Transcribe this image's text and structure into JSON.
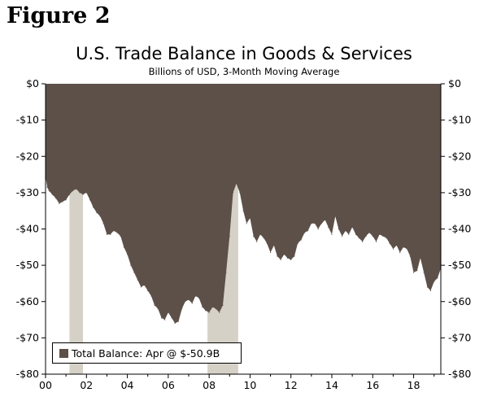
{
  "figure_label": "Figure 2",
  "colors": {
    "area": "#5d5048",
    "recession": "#d6d1c7",
    "background": "#ffffff"
  },
  "chart_data": {
    "type": "area",
    "title": "U.S. Trade Balance in Goods & Services",
    "subtitle": "Billions of USD, 3-Month Moving Average",
    "xlabel": "",
    "ylabel": "",
    "xlim": [
      2000,
      2019.33
    ],
    "ylim": [
      -80,
      0
    ],
    "grid": false,
    "legend_placement": "bottom-left",
    "x_ticks": [
      {
        "value": 2000,
        "label": "00"
      },
      {
        "value": 2002,
        "label": "02"
      },
      {
        "value": 2004,
        "label": "04"
      },
      {
        "value": 2006,
        "label": "06"
      },
      {
        "value": 2008,
        "label": "08"
      },
      {
        "value": 2010,
        "label": "10"
      },
      {
        "value": 2012,
        "label": "12"
      },
      {
        "value": 2014,
        "label": "14"
      },
      {
        "value": 2016,
        "label": "16"
      },
      {
        "value": 2018,
        "label": "18"
      }
    ],
    "y_ticks": [
      {
        "value": 0,
        "label": "$0"
      },
      {
        "value": -10,
        "label": "-$10"
      },
      {
        "value": -20,
        "label": "-$20"
      },
      {
        "value": -30,
        "label": "-$30"
      },
      {
        "value": -40,
        "label": "-$40"
      },
      {
        "value": -50,
        "label": "-$50"
      },
      {
        "value": -60,
        "label": "-$60"
      },
      {
        "value": -70,
        "label": "-$70"
      },
      {
        "value": -80,
        "label": "-$80"
      }
    ],
    "recessions": [
      {
        "start": 2001.17,
        "end": 2001.83
      },
      {
        "start": 2007.92,
        "end": 2009.42
      }
    ],
    "series": [
      {
        "name": "Total Balance",
        "legend_label": "Total Balance: Apr @ $-50.9B",
        "x": [
          2000.0,
          2000.08,
          2000.17,
          2000.33,
          2000.5,
          2000.67,
          2000.83,
          2001.0,
          2001.17,
          2001.33,
          2001.5,
          2001.67,
          2001.83,
          2002.0,
          2002.17,
          2002.33,
          2002.5,
          2002.67,
          2002.83,
          2003.0,
          2003.17,
          2003.33,
          2003.5,
          2003.67,
          2003.83,
          2004.0,
          2004.17,
          2004.33,
          2004.5,
          2004.67,
          2004.83,
          2005.0,
          2005.17,
          2005.33,
          2005.5,
          2005.67,
          2005.83,
          2006.0,
          2006.17,
          2006.33,
          2006.5,
          2006.67,
          2006.83,
          2007.0,
          2007.17,
          2007.33,
          2007.5,
          2007.67,
          2007.83,
          2008.0,
          2008.17,
          2008.33,
          2008.5,
          2008.67,
          2008.83,
          2009.0,
          2009.17,
          2009.33,
          2009.5,
          2009.67,
          2009.83,
          2010.0,
          2010.17,
          2010.33,
          2010.5,
          2010.67,
          2010.83,
          2011.0,
          2011.17,
          2011.33,
          2011.5,
          2011.67,
          2011.83,
          2012.0,
          2012.17,
          2012.33,
          2012.5,
          2012.67,
          2012.83,
          2013.0,
          2013.17,
          2013.33,
          2013.5,
          2013.67,
          2013.83,
          2014.0,
          2014.17,
          2014.33,
          2014.5,
          2014.67,
          2014.83,
          2015.0,
          2015.17,
          2015.33,
          2015.5,
          2015.67,
          2015.83,
          2016.0,
          2016.17,
          2016.33,
          2016.5,
          2016.67,
          2016.83,
          2017.0,
          2017.17,
          2017.33,
          2017.5,
          2017.67,
          2017.83,
          2018.0,
          2018.17,
          2018.33,
          2018.5,
          2018.67,
          2018.83,
          2019.0,
          2019.17,
          2019.33
        ],
        "values": [
          -25.5,
          -28.5,
          -29.5,
          -30.5,
          -31.5,
          -33.0,
          -32.5,
          -32.0,
          -30.5,
          -29.5,
          -29.0,
          -30.0,
          -30.5,
          -30.0,
          -32.0,
          -34.0,
          -35.5,
          -36.5,
          -38.5,
          -41.5,
          -41.5,
          -40.5,
          -41.0,
          -42.0,
          -45.0,
          -47.0,
          -50.0,
          -52.0,
          -54.0,
          -56.0,
          -55.5,
          -57.0,
          -58.5,
          -61.0,
          -62.0,
          -64.5,
          -65.0,
          -63.0,
          -64.5,
          -66.0,
          -65.5,
          -62.0,
          -60.0,
          -59.5,
          -60.5,
          -58.5,
          -59.0,
          -61.5,
          -62.5,
          -63.0,
          -61.5,
          -62.0,
          -63.0,
          -61.0,
          -52.0,
          -42.0,
          -30.0,
          -27.5,
          -30.0,
          -35.0,
          -38.5,
          -37.0,
          -42.0,
          -43.5,
          -41.5,
          -42.5,
          -44.0,
          -46.5,
          -44.5,
          -47.5,
          -48.5,
          -47.0,
          -48.0,
          -48.5,
          -47.5,
          -44.0,
          -43.0,
          -41.0,
          -40.5,
          -38.5,
          -38.5,
          -40.0,
          -38.5,
          -37.5,
          -39.5,
          -41.5,
          -36.5,
          -40.0,
          -42.0,
          -40.5,
          -41.5,
          -39.5,
          -41.5,
          -42.5,
          -43.5,
          -42.0,
          -41.0,
          -42.0,
          -43.5,
          -41.5,
          -42.0,
          -42.5,
          -44.0,
          -45.5,
          -44.5,
          -46.5,
          -45.0,
          -45.5,
          -47.5,
          -52.0,
          -51.5,
          -48.0,
          -52.0,
          -56.0,
          -57.0,
          -54.5,
          -53.5,
          -50.9
        ]
      }
    ]
  }
}
